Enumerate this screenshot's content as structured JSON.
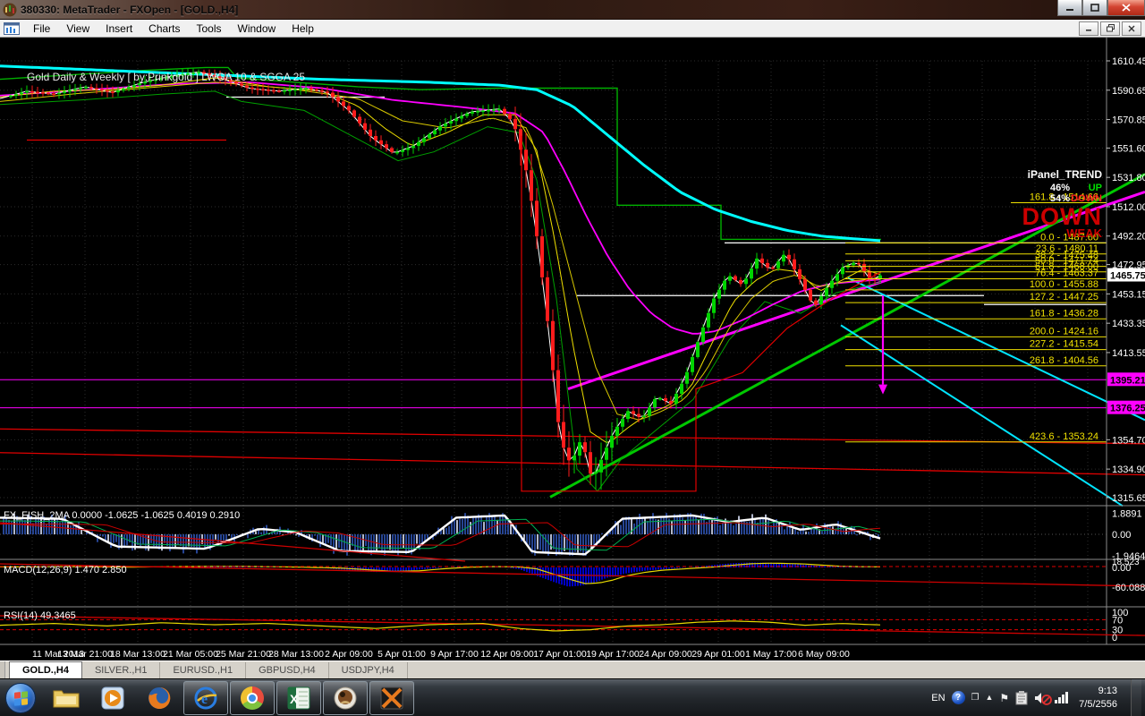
{
  "window": {
    "title": "380330: MetaTrader - FXOpen - [GOLD.,H4]",
    "menus": [
      "File",
      "View",
      "Insert",
      "Charts",
      "Tools",
      "Window",
      "Help"
    ]
  },
  "chart": {
    "watermark": "Gold Daily & Weekly [ by:Prinkgold ]  LWGA 10  &  SGGA 25",
    "price_ticks": [
      "1610.45",
      "1590.65",
      "1570.85",
      "1551.60",
      "1531.80",
      "1512.00",
      "1492.20",
      "1472.95",
      "1453.15",
      "1433.35",
      "1413.55",
      "1354.70",
      "1334.90",
      "1315.65"
    ],
    "current_price": "1465.75",
    "magenta_levels": [
      "1395.21",
      "1376.25"
    ],
    "time_labels": [
      "11 Mar 2013",
      "13 Mar 21:00",
      "18 Mar 13:00",
      "21 Mar 05:00",
      "25 Mar 21:00",
      "28 Mar 13:00",
      "2 Apr 09:00",
      "5 Apr 01:00",
      "9 Apr 17:00",
      "12 Apr 09:00",
      "17 Apr 01:00",
      "19 Apr 17:00",
      "24 Apr 09:00",
      "29 Apr 01:00",
      "1 May 17:00",
      "6 May 09:00"
    ],
    "ipanel": {
      "title": "iPanel_TREND",
      "up_pct": "46%",
      "up_label": "UP",
      "down_pct": "54%",
      "down_label": "DOWN",
      "big_signal": "DOWN",
      "strength": "WEAK",
      "fib_extra": "161.8 - 1514.66"
    },
    "fib_levels": [
      {
        "label": "0.0 - 1487.60"
      },
      {
        "label": "23.6 - 1480.11"
      },
      {
        "label": "38.2 - 1475.48"
      },
      {
        "label": "50.0 - 1471.74"
      },
      {
        "label": "61.8 - 1468.00"
      },
      {
        "label": "76.4 - 1463.37"
      },
      {
        "label": "100.0 - 1455.88"
      },
      {
        "label": "127.2 - 1447.25"
      },
      {
        "label": "161.8 - 1436.28"
      },
      {
        "label": "200.0 - 1424.16"
      },
      {
        "label": "227.2 - 1415.54"
      },
      {
        "label": "261.8 - 1404.56"
      },
      {
        "label": "423.6 - 1353.24"
      }
    ],
    "panes": {
      "fish": {
        "label": "FX_FISH_2MA 0.0000 -1.0625 -1.0625 0.4019 0.2910",
        "scale": [
          "1.8891",
          "0.00",
          "-1.9464"
        ]
      },
      "macd": {
        "label": "MACD(12,26,9) 1.470 2.850",
        "scale": [
          "18.523",
          "0.00",
          "-60.088"
        ]
      },
      "rsi": {
        "label": "RSI(14) 49.3465",
        "scale": [
          "100",
          "70",
          "30",
          "0"
        ]
      }
    },
    "colors": {
      "bull": "#00d400",
      "bear": "#ff1c1c",
      "grid": "#2b2b2b",
      "cyan": "#00ffff",
      "magenta": "#ff00ff",
      "yellow": "#f0e000",
      "green_trend": "#00c000",
      "red_line": "#e00000",
      "white": "#ffffff",
      "fib": "#f0e000",
      "axis_text": "#ffffff",
      "macd_hist": "#0000dd"
    },
    "series": {
      "closes": [
        [
          0,
          1585
        ],
        [
          30,
          1590
        ],
        [
          60,
          1588
        ],
        [
          95,
          1593
        ],
        [
          125,
          1589
        ],
        [
          160,
          1596
        ],
        [
          190,
          1600
        ],
        [
          222,
          1603
        ],
        [
          246,
          1599
        ],
        [
          278,
          1592
        ],
        [
          310,
          1590
        ],
        [
          342,
          1592
        ],
        [
          366,
          1589
        ],
        [
          390,
          1577
        ],
        [
          415,
          1559
        ],
        [
          440,
          1548
        ],
        [
          462,
          1553
        ],
        [
          494,
          1567
        ],
        [
          526,
          1576
        ],
        [
          558,
          1578
        ],
        [
          574,
          1569
        ],
        [
          590,
          1532
        ],
        [
          602,
          1484
        ],
        [
          614,
          1425
        ],
        [
          626,
          1355
        ],
        [
          638,
          1338
        ],
        [
          650,
          1356
        ],
        [
          662,
          1327
        ],
        [
          674,
          1344
        ],
        [
          686,
          1360
        ],
        [
          702,
          1374
        ],
        [
          718,
          1369
        ],
        [
          734,
          1384
        ],
        [
          750,
          1379
        ],
        [
          766,
          1397
        ],
        [
          782,
          1424
        ],
        [
          798,
          1450
        ],
        [
          814,
          1466
        ],
        [
          830,
          1459
        ],
        [
          846,
          1477
        ],
        [
          862,
          1469
        ],
        [
          878,
          1481
        ],
        [
          894,
          1463
        ],
        [
          910,
          1444
        ],
        [
          926,
          1459
        ],
        [
          942,
          1471
        ],
        [
          958,
          1475
        ],
        [
          974,
          1462
        ],
        [
          985,
          1466
        ]
      ],
      "cyan_ma": [
        [
          0,
          1607
        ],
        [
          120,
          1604
        ],
        [
          240,
          1601
        ],
        [
          360,
          1598
        ],
        [
          480,
          1596
        ],
        [
          560,
          1594
        ],
        [
          600,
          1591
        ],
        [
          640,
          1580
        ],
        [
          680,
          1560
        ],
        [
          720,
          1540
        ],
        [
          760,
          1522
        ],
        [
          800,
          1510
        ],
        [
          840,
          1502
        ],
        [
          880,
          1496
        ],
        [
          920,
          1492
        ],
        [
          985,
          1489
        ]
      ],
      "magenta_ma": [
        [
          0,
          1587
        ],
        [
          100,
          1591
        ],
        [
          200,
          1595
        ],
        [
          280,
          1596
        ],
        [
          360,
          1592
        ],
        [
          440,
          1584
        ],
        [
          520,
          1579
        ],
        [
          576,
          1575
        ],
        [
          608,
          1562
        ],
        [
          632,
          1535
        ],
        [
          656,
          1505
        ],
        [
          680,
          1478
        ],
        [
          704,
          1456
        ],
        [
          728,
          1440
        ],
        [
          752,
          1430
        ],
        [
          776,
          1426
        ],
        [
          800,
          1428
        ],
        [
          832,
          1436
        ],
        [
          864,
          1446
        ],
        [
          896,
          1455
        ],
        [
          928,
          1460
        ],
        [
          985,
          1463
        ]
      ],
      "yellow_ma1": [
        [
          0,
          1586
        ],
        [
          60,
          1590
        ],
        [
          120,
          1591
        ],
        [
          180,
          1594
        ],
        [
          240,
          1599
        ],
        [
          300,
          1593
        ],
        [
          360,
          1590
        ],
        [
          400,
          1580
        ],
        [
          430,
          1565
        ],
        [
          460,
          1553
        ],
        [
          500,
          1562
        ],
        [
          540,
          1574
        ],
        [
          576,
          1574
        ],
        [
          600,
          1550
        ],
        [
          620,
          1490
        ],
        [
          640,
          1420
        ],
        [
          660,
          1360
        ],
        [
          680,
          1352
        ],
        [
          700,
          1362
        ],
        [
          724,
          1372
        ],
        [
          748,
          1378
        ],
        [
          772,
          1390
        ],
        [
          796,
          1420
        ],
        [
          820,
          1448
        ],
        [
          844,
          1462
        ],
        [
          868,
          1470
        ],
        [
          892,
          1468
        ],
        [
          916,
          1455
        ],
        [
          940,
          1462
        ],
        [
          965,
          1470
        ],
        [
          985,
          1466
        ]
      ],
      "yellow_ma2": [
        [
          0,
          1583
        ],
        [
          80,
          1588
        ],
        [
          160,
          1592
        ],
        [
          240,
          1596
        ],
        [
          320,
          1592
        ],
        [
          400,
          1585
        ],
        [
          450,
          1570
        ],
        [
          500,
          1565
        ],
        [
          550,
          1572
        ],
        [
          590,
          1565
        ],
        [
          615,
          1520
        ],
        [
          640,
          1462
        ],
        [
          665,
          1405
        ],
        [
          690,
          1372
        ],
        [
          715,
          1368
        ],
        [
          740,
          1374
        ],
        [
          765,
          1382
        ],
        [
          790,
          1402
        ],
        [
          815,
          1430
        ],
        [
          840,
          1450
        ],
        [
          865,
          1462
        ],
        [
          890,
          1466
        ],
        [
          915,
          1458
        ],
        [
          940,
          1461
        ],
        [
          985,
          1464
        ]
      ],
      "green_upper": [
        [
          0,
          1598
        ],
        [
          80,
          1601
        ],
        [
          160,
          1604
        ],
        [
          230,
          1606
        ],
        [
          255,
          1606
        ],
        [
          265,
          1599
        ],
        [
          330,
          1596
        ],
        [
          400,
          1593
        ],
        [
          470,
          1591
        ],
        [
          560,
          1592
        ],
        [
          690,
          1592
        ],
        [
          690,
          1513
        ],
        [
          806,
          1513
        ],
        [
          806,
          1490
        ],
        [
          985,
          1490
        ]
      ],
      "green_lower": [
        [
          0,
          1581
        ],
        [
          90,
          1584
        ],
        [
          180,
          1588
        ],
        [
          240,
          1590
        ],
        [
          270,
          1583
        ],
        [
          340,
          1577
        ],
        [
          405,
          1556
        ],
        [
          445,
          1543
        ],
        [
          485,
          1549
        ],
        [
          545,
          1566
        ],
        [
          580,
          1562
        ],
        [
          600,
          1530
        ],
        [
          622,
          1450
        ],
        [
          645,
          1335
        ],
        [
          668,
          1320
        ],
        [
          695,
          1342
        ],
        [
          735,
          1362
        ],
        [
          775,
          1382
        ],
        [
          815,
          1422
        ],
        [
          855,
          1448
        ],
        [
          895,
          1440
        ],
        [
          935,
          1454
        ],
        [
          985,
          1461
        ]
      ],
      "fish": [
        [
          0,
          1.5
        ],
        [
          70,
          1.4
        ],
        [
          130,
          -1.1
        ],
        [
          230,
          -1.3
        ],
        [
          290,
          0.5
        ],
        [
          330,
          0.2
        ],
        [
          380,
          -1.5
        ],
        [
          460,
          -1.6
        ],
        [
          510,
          1.5
        ],
        [
          565,
          1.7
        ],
        [
          595,
          -1.6
        ],
        [
          655,
          -1.8
        ],
        [
          695,
          1.4
        ],
        [
          775,
          1.7
        ],
        [
          815,
          1.1
        ],
        [
          855,
          1.5
        ],
        [
          895,
          0.4
        ],
        [
          935,
          0.9
        ],
        [
          985,
          -0.4
        ]
      ],
      "macd": [
        [
          0,
          2
        ],
        [
          60,
          3
        ],
        [
          120,
          1
        ],
        [
          180,
          3
        ],
        [
          240,
          4
        ],
        [
          300,
          2
        ],
        [
          360,
          -2
        ],
        [
          390,
          -8
        ],
        [
          420,
          -14
        ],
        [
          450,
          -12
        ],
        [
          470,
          -6
        ],
        [
          500,
          0
        ],
        [
          530,
          3
        ],
        [
          560,
          2
        ],
        [
          580,
          -5
        ],
        [
          600,
          -25
        ],
        [
          620,
          -45
        ],
        [
          635,
          -58
        ],
        [
          650,
          -55
        ],
        [
          665,
          -45
        ],
        [
          680,
          -30
        ],
        [
          700,
          -18
        ],
        [
          720,
          -10
        ],
        [
          740,
          -6
        ],
        [
          760,
          -2
        ],
        [
          780,
          2
        ],
        [
          800,
          8
        ],
        [
          820,
          13
        ],
        [
          840,
          15
        ],
        [
          860,
          14
        ],
        [
          880,
          12
        ],
        [
          900,
          8
        ],
        [
          920,
          4
        ],
        [
          940,
          3
        ],
        [
          960,
          2
        ],
        [
          985,
          1.5
        ]
      ],
      "rsi": [
        [
          0,
          48
        ],
        [
          60,
          55
        ],
        [
          120,
          45
        ],
        [
          180,
          58
        ],
        [
          240,
          50
        ],
        [
          300,
          55
        ],
        [
          360,
          45
        ],
        [
          420,
          35
        ],
        [
          480,
          50
        ],
        [
          540,
          55
        ],
        [
          580,
          35
        ],
        [
          620,
          25
        ],
        [
          660,
          30
        ],
        [
          700,
          45
        ],
        [
          740,
          50
        ],
        [
          780,
          60
        ],
        [
          820,
          65
        ],
        [
          860,
          60
        ],
        [
          900,
          48
        ],
        [
          940,
          55
        ],
        [
          985,
          49
        ]
      ]
    },
    "overlays": {
      "white_segments": [
        [
          253,
          430,
          1586
        ],
        [
          810,
          1237,
          1487.6
        ],
        [
          645,
          1100,
          1452
        ],
        [
          1100,
          1237,
          1446
        ]
      ],
      "red_hsegments": [
        [
          30,
          253,
          1557
        ]
      ],
      "crash_trail": [
        [
          583,
          1560
        ],
        [
          583,
          1320
        ],
        [
          778,
          1320
        ],
        [
          778,
          1389
        ],
        [
          830,
          1400
        ],
        [
          880,
          1430
        ],
        [
          930,
          1450
        ],
        [
          985,
          1468
        ]
      ],
      "red_long_lines": [
        [
          0,
          1362,
          1280,
          1352
        ],
        [
          0,
          1346,
          1280,
          1331
        ]
      ],
      "trend_lines": [
        [
          635,
          1389,
          1280,
          1522,
          "#ff00ff",
          3
        ],
        [
          615,
          1316,
          1280,
          1534,
          "#00c800",
          3
        ],
        [
          948,
          1464,
          1280,
          1368,
          "#00e5ff",
          2
        ],
        [
          940,
          1432,
          1255,
          1310,
          "#00e5ff",
          2
        ]
      ],
      "arrow": {
        "x": 987,
        "p_from": 1452,
        "p_to": 1392
      }
    }
  },
  "tabs": {
    "active": "GOLD.,H4",
    "items": [
      "SILVER.,H1",
      "EURUSD.,H1",
      "GBPUSD,H4",
      "USDJPY,H4"
    ]
  },
  "taskbar": {
    "language": "EN",
    "clock_time": "9:13",
    "clock_date": "7/5/2556"
  }
}
